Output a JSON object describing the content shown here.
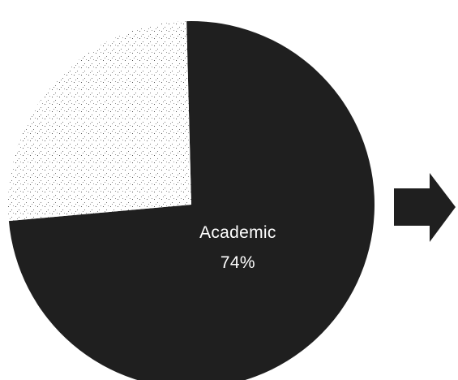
{
  "chart_data": {
    "type": "pie",
    "slices": [
      {
        "label": "Academic",
        "value": 74,
        "display": "74%",
        "color": "#1f1f1f",
        "texture": "solid"
      },
      {
        "label": "",
        "value": 26,
        "display": "",
        "color": "#ffffff",
        "texture": "speckled"
      }
    ],
    "title": "",
    "legend": "none"
  },
  "decorations": {
    "arrow": {
      "icon": "right-arrow-icon",
      "color": "#1f1f1f"
    }
  }
}
